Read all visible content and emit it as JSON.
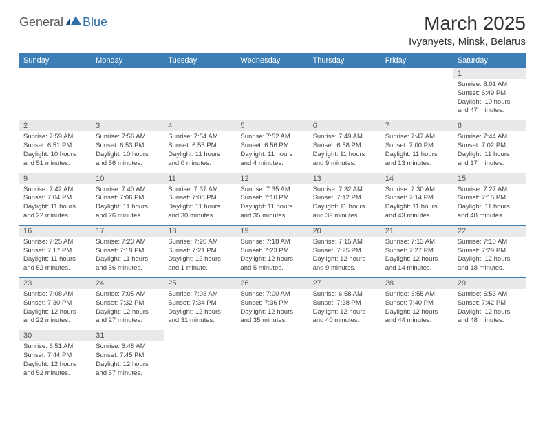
{
  "logo": {
    "part1": "General",
    "part2": "Blue",
    "flag_color": "#2f6fa8"
  },
  "title": "March 2025",
  "location": "Ivyanyets, Minsk, Belarus",
  "colors": {
    "header_bg": "#3b7fb6",
    "header_text": "#ffffff",
    "daynum_bg": "#e9e9e9",
    "daynum_text": "#555555",
    "cell_text": "#444444",
    "border": "#3b7fb6",
    "background": "#ffffff"
  },
  "typography": {
    "title_fontsize": 28,
    "location_fontsize": 15,
    "weekday_fontsize": 11,
    "daynum_fontsize": 11,
    "detail_fontsize": 9.5
  },
  "weekdays": [
    "Sunday",
    "Monday",
    "Tuesday",
    "Wednesday",
    "Thursday",
    "Friday",
    "Saturday"
  ],
  "weeks": [
    [
      null,
      null,
      null,
      null,
      null,
      null,
      {
        "d": "1",
        "sr": "Sunrise: 8:01 AM",
        "ss": "Sunset: 6:49 PM",
        "dl": "Daylight: 10 hours and 47 minutes."
      }
    ],
    [
      {
        "d": "2",
        "sr": "Sunrise: 7:59 AM",
        "ss": "Sunset: 6:51 PM",
        "dl": "Daylight: 10 hours and 51 minutes."
      },
      {
        "d": "3",
        "sr": "Sunrise: 7:56 AM",
        "ss": "Sunset: 6:53 PM",
        "dl": "Daylight: 10 hours and 56 minutes."
      },
      {
        "d": "4",
        "sr": "Sunrise: 7:54 AM",
        "ss": "Sunset: 6:55 PM",
        "dl": "Daylight: 11 hours and 0 minutes."
      },
      {
        "d": "5",
        "sr": "Sunrise: 7:52 AM",
        "ss": "Sunset: 6:56 PM",
        "dl": "Daylight: 11 hours and 4 minutes."
      },
      {
        "d": "6",
        "sr": "Sunrise: 7:49 AM",
        "ss": "Sunset: 6:58 PM",
        "dl": "Daylight: 11 hours and 9 minutes."
      },
      {
        "d": "7",
        "sr": "Sunrise: 7:47 AM",
        "ss": "Sunset: 7:00 PM",
        "dl": "Daylight: 11 hours and 13 minutes."
      },
      {
        "d": "8",
        "sr": "Sunrise: 7:44 AM",
        "ss": "Sunset: 7:02 PM",
        "dl": "Daylight: 11 hours and 17 minutes."
      }
    ],
    [
      {
        "d": "9",
        "sr": "Sunrise: 7:42 AM",
        "ss": "Sunset: 7:04 PM",
        "dl": "Daylight: 11 hours and 22 minutes."
      },
      {
        "d": "10",
        "sr": "Sunrise: 7:40 AM",
        "ss": "Sunset: 7:06 PM",
        "dl": "Daylight: 11 hours and 26 minutes."
      },
      {
        "d": "11",
        "sr": "Sunrise: 7:37 AM",
        "ss": "Sunset: 7:08 PM",
        "dl": "Daylight: 11 hours and 30 minutes."
      },
      {
        "d": "12",
        "sr": "Sunrise: 7:35 AM",
        "ss": "Sunset: 7:10 PM",
        "dl": "Daylight: 11 hours and 35 minutes."
      },
      {
        "d": "13",
        "sr": "Sunrise: 7:32 AM",
        "ss": "Sunset: 7:12 PM",
        "dl": "Daylight: 11 hours and 39 minutes."
      },
      {
        "d": "14",
        "sr": "Sunrise: 7:30 AM",
        "ss": "Sunset: 7:14 PM",
        "dl": "Daylight: 11 hours and 43 minutes."
      },
      {
        "d": "15",
        "sr": "Sunrise: 7:27 AM",
        "ss": "Sunset: 7:15 PM",
        "dl": "Daylight: 11 hours and 48 minutes."
      }
    ],
    [
      {
        "d": "16",
        "sr": "Sunrise: 7:25 AM",
        "ss": "Sunset: 7:17 PM",
        "dl": "Daylight: 11 hours and 52 minutes."
      },
      {
        "d": "17",
        "sr": "Sunrise: 7:23 AM",
        "ss": "Sunset: 7:19 PM",
        "dl": "Daylight: 11 hours and 56 minutes."
      },
      {
        "d": "18",
        "sr": "Sunrise: 7:20 AM",
        "ss": "Sunset: 7:21 PM",
        "dl": "Daylight: 12 hours and 1 minute."
      },
      {
        "d": "19",
        "sr": "Sunrise: 7:18 AM",
        "ss": "Sunset: 7:23 PM",
        "dl": "Daylight: 12 hours and 5 minutes."
      },
      {
        "d": "20",
        "sr": "Sunrise: 7:15 AM",
        "ss": "Sunset: 7:25 PM",
        "dl": "Daylight: 12 hours and 9 minutes."
      },
      {
        "d": "21",
        "sr": "Sunrise: 7:13 AM",
        "ss": "Sunset: 7:27 PM",
        "dl": "Daylight: 12 hours and 14 minutes."
      },
      {
        "d": "22",
        "sr": "Sunrise: 7:10 AM",
        "ss": "Sunset: 7:29 PM",
        "dl": "Daylight: 12 hours and 18 minutes."
      }
    ],
    [
      {
        "d": "23",
        "sr": "Sunrise: 7:08 AM",
        "ss": "Sunset: 7:30 PM",
        "dl": "Daylight: 12 hours and 22 minutes."
      },
      {
        "d": "24",
        "sr": "Sunrise: 7:05 AM",
        "ss": "Sunset: 7:32 PM",
        "dl": "Daylight: 12 hours and 27 minutes."
      },
      {
        "d": "25",
        "sr": "Sunrise: 7:03 AM",
        "ss": "Sunset: 7:34 PM",
        "dl": "Daylight: 12 hours and 31 minutes."
      },
      {
        "d": "26",
        "sr": "Sunrise: 7:00 AM",
        "ss": "Sunset: 7:36 PM",
        "dl": "Daylight: 12 hours and 35 minutes."
      },
      {
        "d": "27",
        "sr": "Sunrise: 6:58 AM",
        "ss": "Sunset: 7:38 PM",
        "dl": "Daylight: 12 hours and 40 minutes."
      },
      {
        "d": "28",
        "sr": "Sunrise: 6:55 AM",
        "ss": "Sunset: 7:40 PM",
        "dl": "Daylight: 12 hours and 44 minutes."
      },
      {
        "d": "29",
        "sr": "Sunrise: 6:53 AM",
        "ss": "Sunset: 7:42 PM",
        "dl": "Daylight: 12 hours and 48 minutes."
      }
    ],
    [
      {
        "d": "30",
        "sr": "Sunrise: 6:51 AM",
        "ss": "Sunset: 7:44 PM",
        "dl": "Daylight: 12 hours and 52 minutes."
      },
      {
        "d": "31",
        "sr": "Sunrise: 6:48 AM",
        "ss": "Sunset: 7:45 PM",
        "dl": "Daylight: 12 hours and 57 minutes."
      },
      null,
      null,
      null,
      null,
      null
    ]
  ]
}
